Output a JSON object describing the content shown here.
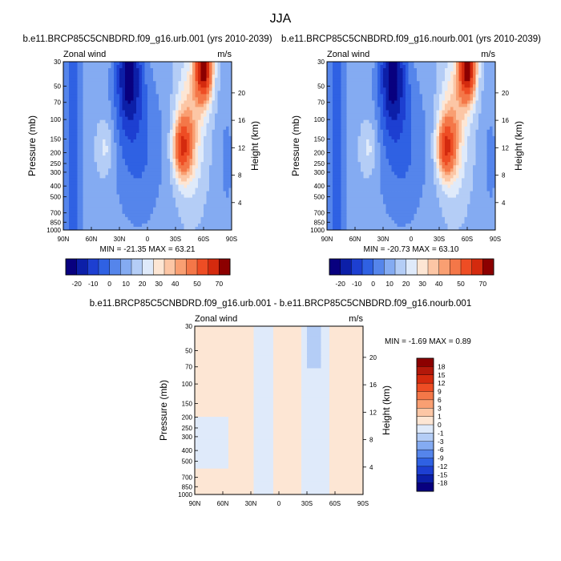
{
  "figure": {
    "title": "JJA"
  },
  "chart_data": [
    {
      "type": "heatmap",
      "panel": "top-left",
      "title": "b.e11.BRCP85C5CNBDRD.f09_g16.urb.001 (yrs 2010-2039)",
      "variable": "Zonal wind",
      "units": "m/s",
      "ylabel": "Pressure (mb)",
      "ylabel_right": "Height (km)",
      "x_ticks": [
        "90N",
        "60N",
        "30N",
        "0",
        "30S",
        "60S",
        "90S"
      ],
      "y_ticks": [
        "30",
        "50",
        "70",
        "100",
        "150",
        "200",
        "250",
        "300",
        "400",
        "500",
        "700",
        "850",
        "1000"
      ],
      "height_ticks": [
        "20",
        "16",
        "12",
        "8",
        "4"
      ],
      "stats": "MIN = -21.35   MAX =  63.21",
      "colorbar_labels": [
        "-20",
        "-10",
        "0",
        "10",
        "20",
        "30",
        "40",
        "50",
        "70"
      ]
    },
    {
      "type": "heatmap",
      "panel": "top-right",
      "title": "b.e11.BRCP85C5CNBDRD.f09_g16.nourb.001 (yrs 2010-2039)",
      "variable": "Zonal wind",
      "units": "m/s",
      "ylabel": "Pressure (mb)",
      "ylabel_right": "Height (km)",
      "x_ticks": [
        "90N",
        "60N",
        "30N",
        "0",
        "30S",
        "60S",
        "90S"
      ],
      "y_ticks": [
        "30",
        "50",
        "70",
        "100",
        "150",
        "200",
        "250",
        "300",
        "400",
        "500",
        "700",
        "850",
        "1000"
      ],
      "height_ticks": [
        "20",
        "16",
        "12",
        "8",
        "4"
      ],
      "stats": "MIN = -20.73   MAX =  63.10",
      "colorbar_labels": [
        "-20",
        "-10",
        "0",
        "10",
        "20",
        "30",
        "40",
        "50",
        "70"
      ]
    },
    {
      "type": "heatmap",
      "panel": "bottom",
      "title": "b.e11.BRCP85C5CNBDRD.f09_g16.urb.001 - b.e11.BRCP85C5CNBDRD.f09_g16.nourb.001",
      "variable": "Zonal wind",
      "units": "m/s",
      "ylabel": "Pressure (mb)",
      "ylabel_right": "Height (km)",
      "x_ticks": [
        "90N",
        "60N",
        "30N",
        "0",
        "30S",
        "60S",
        "90S"
      ],
      "y_ticks": [
        "30",
        "50",
        "70",
        "100",
        "150",
        "200",
        "250",
        "300",
        "400",
        "500",
        "700",
        "850",
        "1000"
      ],
      "height_ticks": [
        "20",
        "16",
        "12",
        "8",
        "4"
      ],
      "stats": "MIN =  -1.69  MAX =   0.89",
      "colorbar_labels": [
        "18",
        "15",
        "12",
        "9",
        "6",
        "3",
        "1",
        "0",
        "-1",
        "-3",
        "-6",
        "-9",
        "-12",
        "-15",
        "-18"
      ]
    }
  ],
  "colors": {
    "full_scale": [
      "#08007f",
      "#0c1fa8",
      "#1d3fd1",
      "#2f61e3",
      "#5585eb",
      "#84abf2",
      "#b4cdf6",
      "#dfeafa",
      "#fde6d4",
      "#fcc6a5",
      "#f99f72",
      "#f47748",
      "#ee4d24",
      "#d42a0e",
      "#8c0000"
    ],
    "diff_scale": [
      "#8c0000",
      "#b3180a",
      "#d42a0e",
      "#ee4d24",
      "#f47748",
      "#f99f72",
      "#fcc6a5",
      "#fde6d4",
      "#dfeafa",
      "#b4cdf6",
      "#84abf2",
      "#5585eb",
      "#2f61e3",
      "#1d3fd1",
      "#0c1fa8",
      "#08007f"
    ]
  }
}
